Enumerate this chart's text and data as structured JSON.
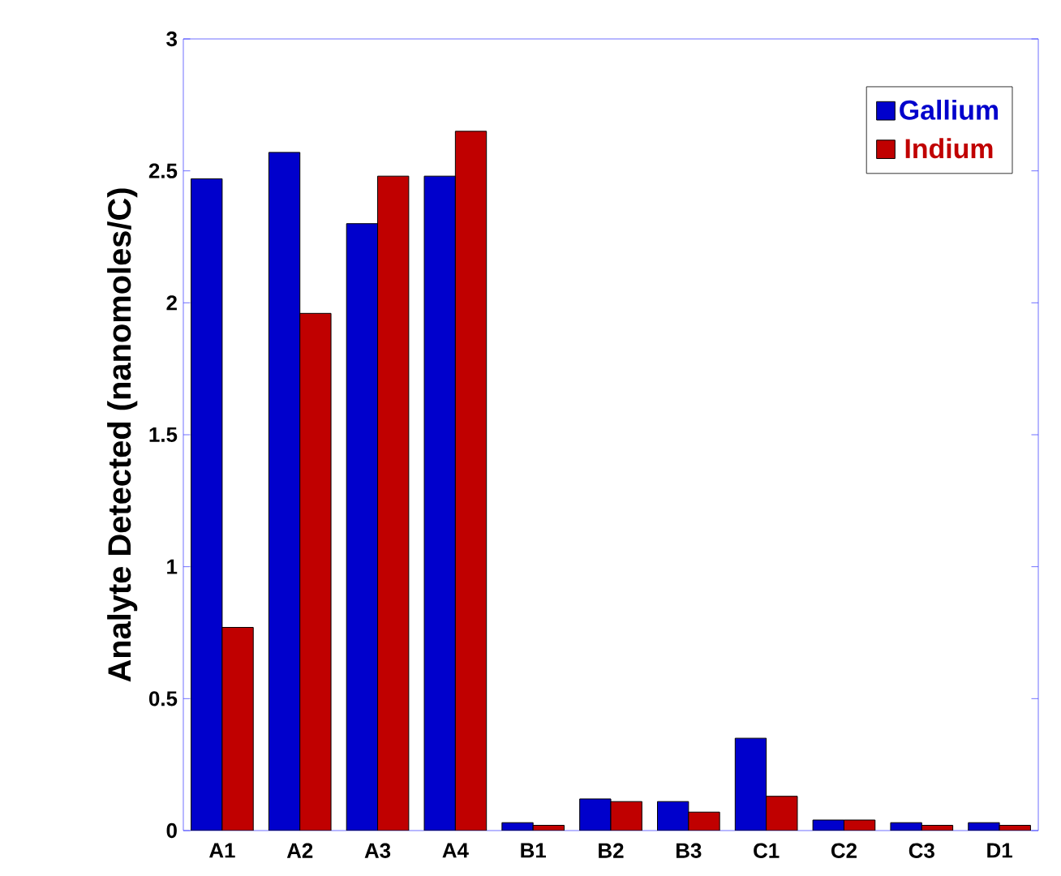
{
  "chart_data": {
    "type": "bar",
    "ylabel": "Analyte Detected (nanomoles/C)",
    "categories": [
      "A1",
      "A2",
      "A3",
      "A4",
      "B1",
      "B2",
      "B3",
      "C1",
      "C2",
      "C3",
      "D1"
    ],
    "series": [
      {
        "name": "Gallium",
        "color": "#0000cc",
        "values": [
          2.47,
          2.57,
          2.3,
          2.48,
          0.03,
          0.12,
          0.11,
          0.35,
          0.04,
          0.03,
          0.03
        ]
      },
      {
        "name": "Indium",
        "color": "#c00000",
        "values": [
          0.77,
          1.96,
          2.48,
          2.65,
          0.02,
          0.11,
          0.07,
          0.13,
          0.04,
          0.02,
          0.02
        ]
      }
    ],
    "ylim": [
      0,
      3
    ],
    "yticks": [
      0,
      0.5,
      1,
      1.5,
      2,
      2.5,
      3
    ],
    "legend": "top right",
    "grid": false
  }
}
